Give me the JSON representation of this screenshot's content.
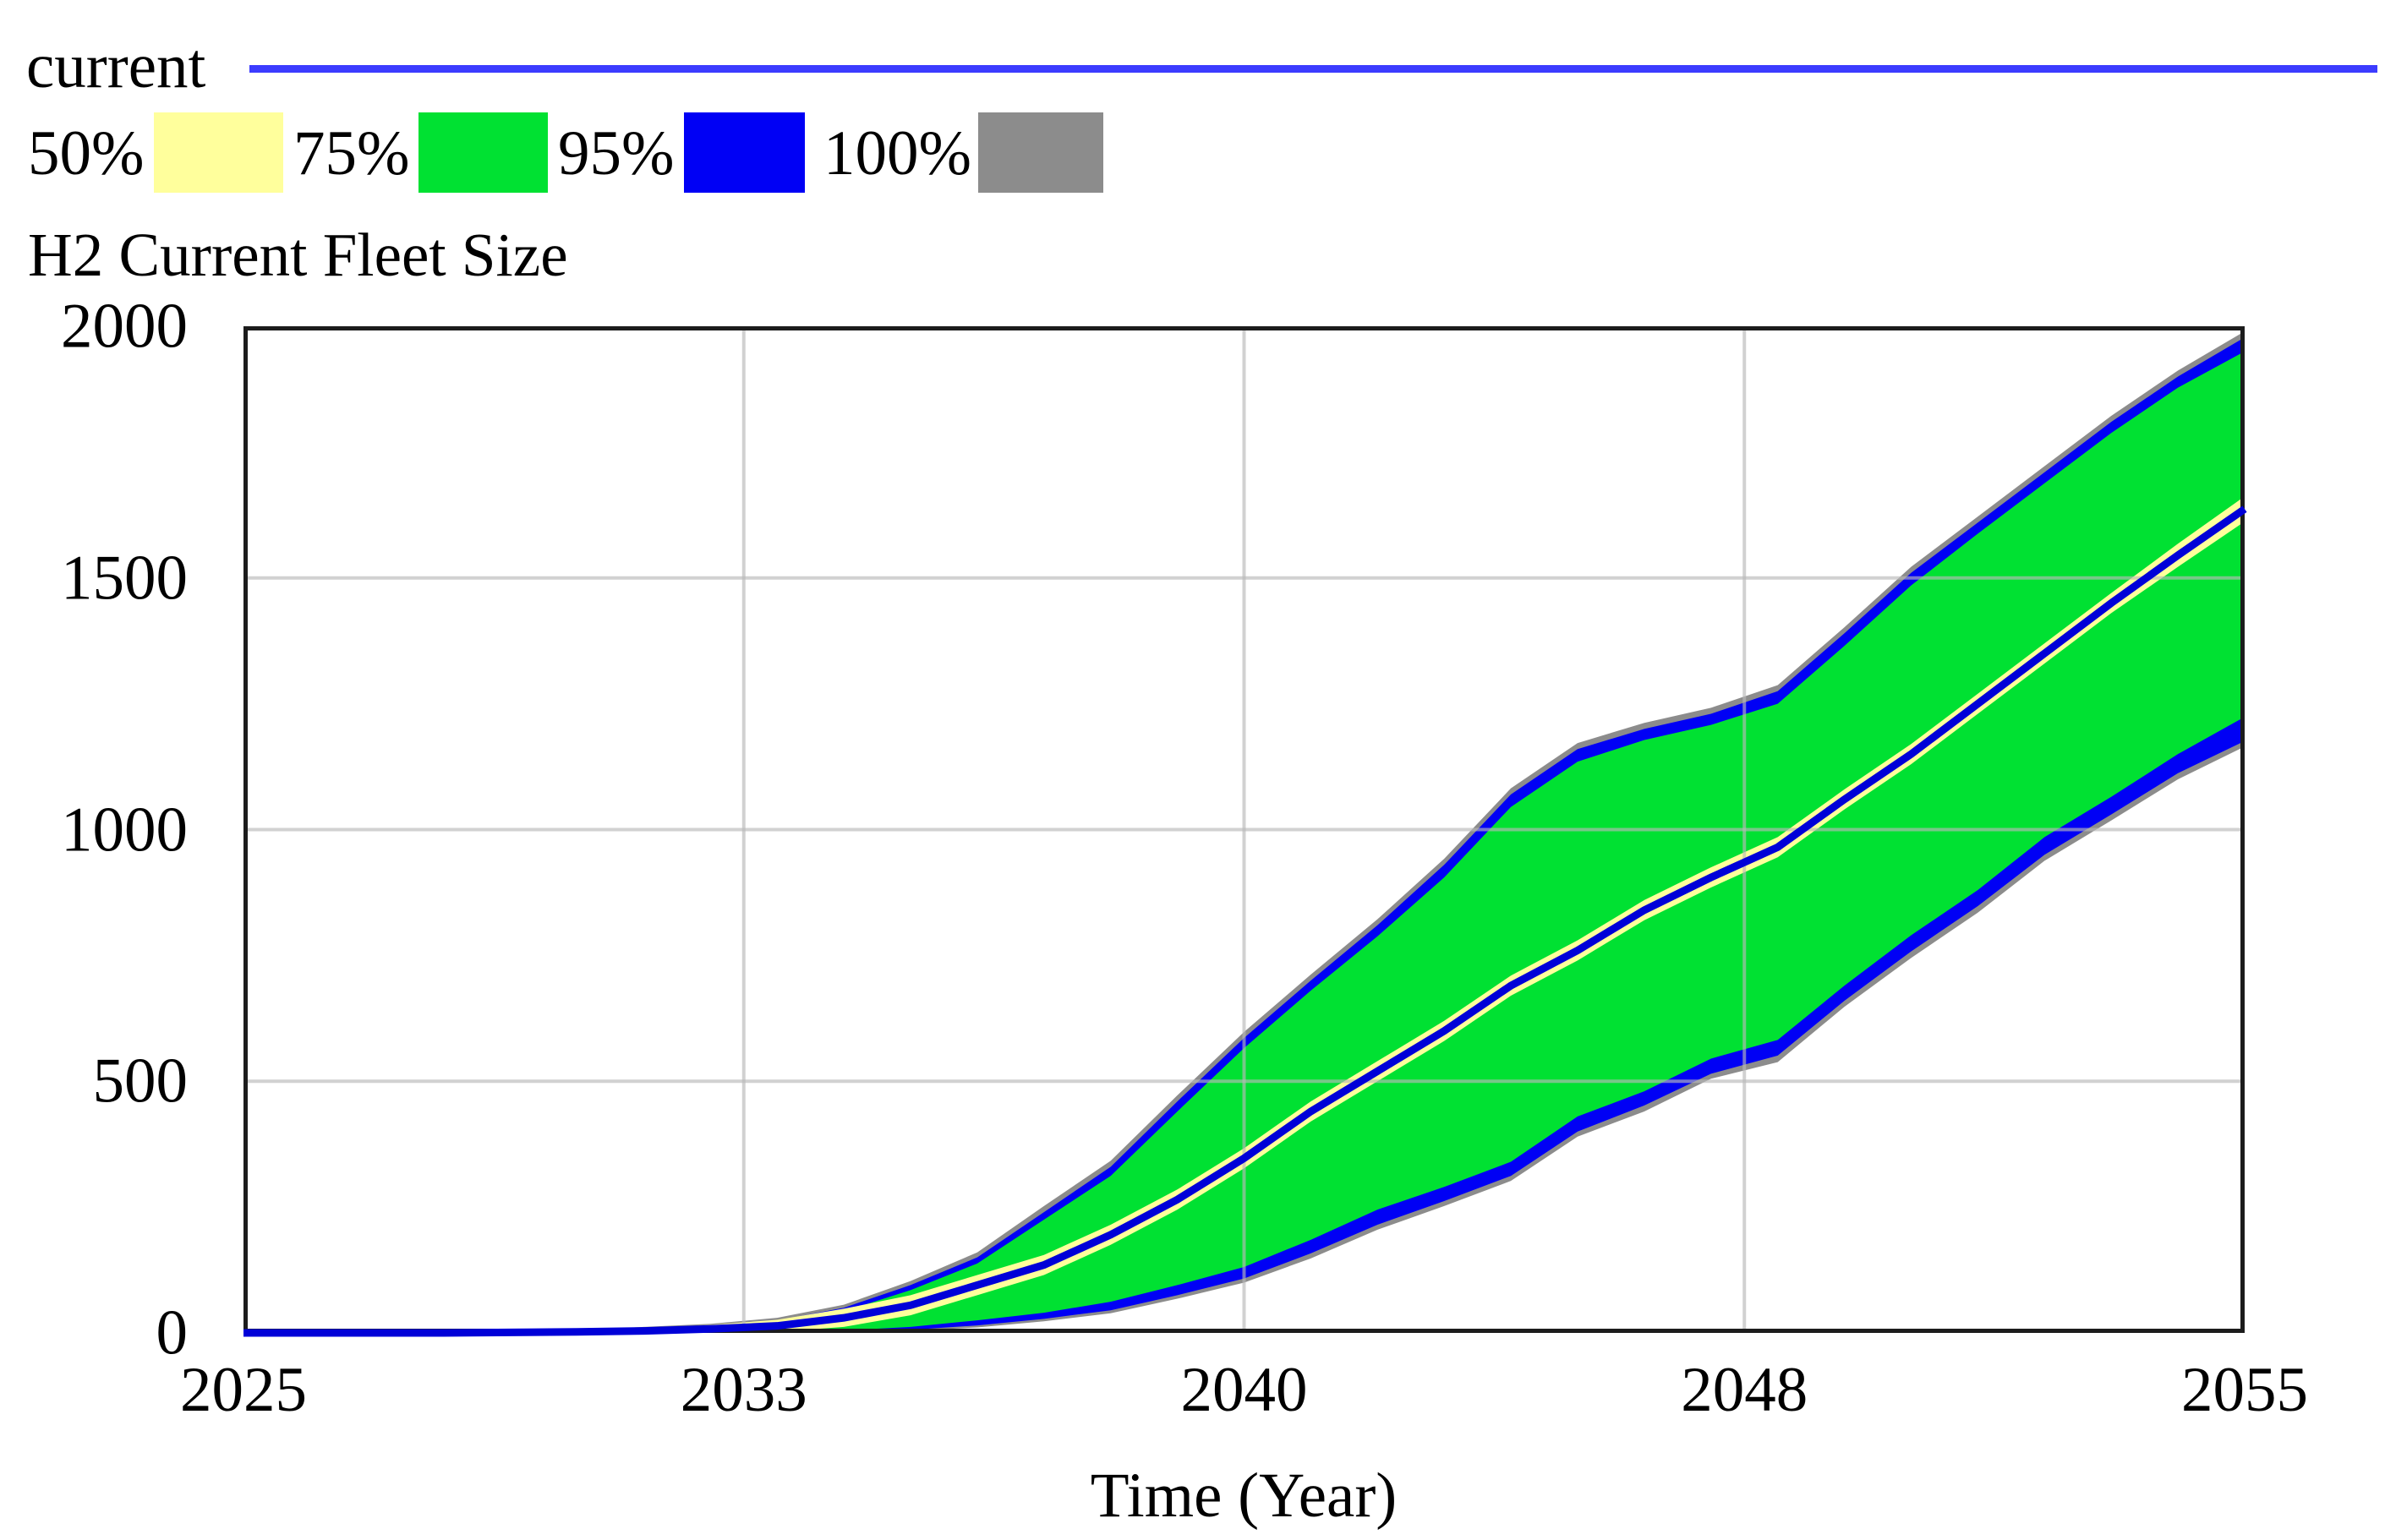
{
  "legend": {
    "current_label": "current",
    "current_color": "#3C3CFF",
    "items": [
      {
        "label": "50%",
        "color": "#FFFF9C"
      },
      {
        "label": "75%",
        "color": "#00E132"
      },
      {
        "label": "95%",
        "color": "#0000F5"
      },
      {
        "label": "100%",
        "color": "#8C8C8C"
      }
    ]
  },
  "chart_data": {
    "type": "area",
    "title": "H2 Current Fleet Size",
    "xlabel": "Time (Year)",
    "x_ticks": [
      "2025",
      "2033",
      "2040",
      "2048",
      "2055"
    ],
    "y_ticks": [
      "2000",
      "1500",
      "1000",
      "500",
      "0"
    ],
    "xlim": [
      2025,
      2055
    ],
    "ylim": [
      0,
      2000
    ],
    "grid": true,
    "legend_position": "top-left",
    "years": [
      2025,
      2026,
      2027,
      2028,
      2029,
      2030,
      2031,
      2032,
      2033,
      2034,
      2035,
      2036,
      2037,
      2038,
      2039,
      2040,
      2041,
      2042,
      2043,
      2044,
      2045,
      2046,
      2047,
      2048,
      2049,
      2050,
      2051,
      2052,
      2053,
      2054,
      2055
    ],
    "bands": [
      {
        "name": "100%",
        "color": "#8C8C8C",
        "lo": [
          0,
          0,
          0,
          0,
          0,
          0,
          0,
          0,
          0,
          1,
          4,
          11,
          23,
          39,
          68,
          100,
          148,
          205,
          252,
          302,
          390,
          440,
          505,
          538,
          648,
          745,
          835,
          938,
          1018,
          1100,
          1165
        ],
        "hi": [
          0,
          0,
          1,
          2,
          3,
          5,
          12,
          18,
          30,
          56,
          103,
          160,
          252,
          342,
          472,
          598,
          712,
          822,
          942,
          1082,
          1172,
          1212,
          1242,
          1287,
          1402,
          1522,
          1622,
          1722,
          1822,
          1912,
          1990
        ]
      },
      {
        "name": "95%",
        "color": "#0000F5",
        "lo": [
          0,
          0,
          0,
          0,
          0,
          0,
          0,
          0,
          0,
          2,
          6,
          15,
          28,
          45,
          75,
          108,
          158,
          215,
          262,
          312,
          400,
          452,
          515,
          551,
          660,
          758,
          848,
          950,
          1030,
          1112,
          1176
        ],
        "hi": [
          0,
          0,
          1,
          1,
          2,
          3,
          10,
          15,
          25,
          50,
          95,
          150,
          240,
          330,
          460,
          586,
          700,
          810,
          930,
          1070,
          1160,
          1200,
          1230,
          1275,
          1390,
          1510,
          1610,
          1710,
          1810,
          1900,
          1978
        ]
      },
      {
        "name": "75%",
        "color": "#00E132",
        "lo": [
          0,
          0,
          0,
          0,
          0,
          0,
          0,
          0,
          0,
          5,
          12,
          25,
          40,
          62,
          95,
          131,
          185,
          245,
          290,
          340,
          430,
          480,
          545,
          582,
          690,
          790,
          880,
          985,
          1065,
          1150,
          1224
        ],
        "hi": [
          0,
          0,
          0,
          1,
          1,
          2,
          7,
          11,
          19,
          43,
          85,
          138,
          225,
          312,
          440,
          566,
          680,
          788,
          905,
          1045,
          1135,
          1178,
          1208,
          1250,
          1365,
          1485,
          1588,
          1688,
          1788,
          1878,
          1950
        ]
      },
      {
        "name": "50%",
        "color": "#FFFF9C",
        "lo": [
          0,
          0,
          0,
          0,
          0,
          0,
          0,
          0,
          2,
          12,
          35,
          75,
          115,
          175,
          245,
          327,
          420,
          500,
          580,
          670,
          740,
          820,
          885,
          945,
          1040,
          1130,
          1230,
          1330,
          1430,
          1522,
          1612
        ],
        "hi": [
          0,
          0,
          0,
          0,
          2,
          4,
          8,
          16,
          26,
          48,
          75,
          115,
          155,
          215,
          285,
          367,
          460,
          540,
          620,
          710,
          780,
          860,
          925,
          985,
          1080,
          1170,
          1270,
          1370,
          1470,
          1568,
          1662
        ]
      }
    ],
    "current": {
      "name": "current",
      "color": "#0000D8",
      "values": [
        0,
        0,
        0,
        0,
        1,
        2,
        4,
        8,
        14,
        30,
        55,
        95,
        135,
        195,
        265,
        347,
        440,
        520,
        600,
        690,
        760,
        840,
        905,
        965,
        1060,
        1150,
        1250,
        1350,
        1450,
        1545,
        1637
      ]
    },
    "style": {
      "gridline_color": "rgba(185,185,185,0.65)",
      "border_color": "#1c1c1c",
      "plot_background": "#ffffff"
    }
  }
}
